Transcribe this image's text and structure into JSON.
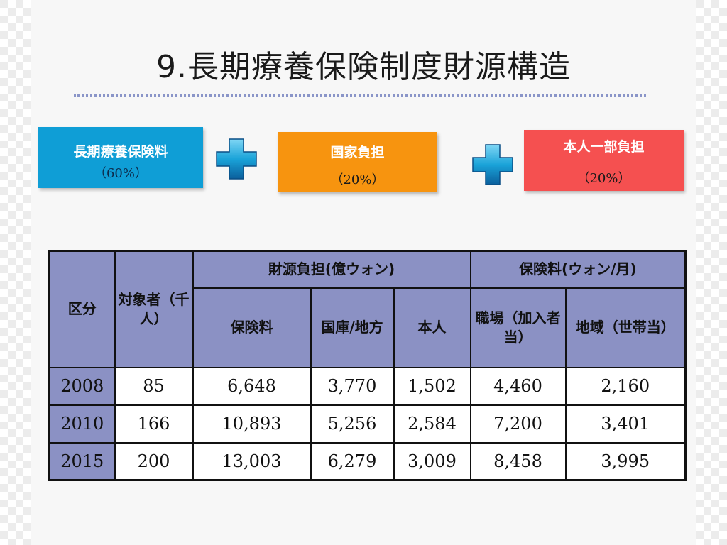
{
  "title": "9.長期療養保険制度財源構造",
  "sources": [
    {
      "label": "長期療養保険料",
      "pct": "（60%）"
    },
    {
      "label": "国家負担",
      "pct": "（20%）"
    },
    {
      "label": "本人一部負担",
      "pct": "（20%）"
    }
  ],
  "table": {
    "header": {
      "category": "区分",
      "target": "対象者（千人）",
      "burden_group": "財源負担(億ウォン)",
      "premium_group": "保険料(ウォン/月)",
      "insurance": "保険料",
      "state": "国庫/地方",
      "self": "本人",
      "workplace": "職場（加入者当）",
      "region": "地域（世帯当）"
    },
    "rows": [
      {
        "year": "2008",
        "target": "85",
        "insurance": "6,648",
        "state": "3,770",
        "self": "1,502",
        "workplace": "4,460",
        "region": "2,160"
      },
      {
        "year": "2010",
        "target": "166",
        "insurance": "10,893",
        "state": "5,256",
        "self": "2,584",
        "workplace": "7,200",
        "region": "3,401"
      },
      {
        "year": "2015",
        "target": "200",
        "insurance": "13,003",
        "state": "6,279",
        "self": "3,009",
        "workplace": "8,458",
        "region": "3,995"
      }
    ]
  },
  "colors": {
    "blue_box": "#0f9ed6",
    "orange_box": "#f7940f",
    "red_box": "#f55050",
    "table_header": "#8b91c4",
    "plus_icon": "#1aa3d9"
  },
  "icons": [
    "plus-icon",
    "plus-icon"
  ]
}
